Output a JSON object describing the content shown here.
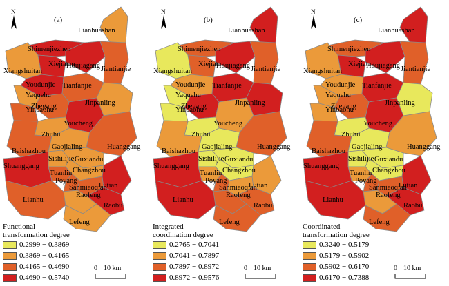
{
  "panels": [
    {
      "letter": "(a)",
      "legend_title": [
        "Functional",
        "transformation degree"
      ],
      "legend_ranges": [
        "0.2999 − 0.3869",
        "0.3869 − 0.4165",
        "0.4165 − 0.4690",
        "0.4690 − 0.5740"
      ],
      "labels": [
        "Lianhuashan",
        "Shimenjiezhen",
        "Xiangshuitan",
        "Xiejiatan",
        "Houjiagang",
        "Jiantianjie",
        "Youdunjie",
        "Tianfanjie",
        "Yaquehu",
        "Zhegang",
        "Jinpanling",
        "Yinbaohu",
        "Youcheng",
        "Zhuhu",
        "Baishazhou",
        "Gaojialing",
        "Huanggang",
        "Sishilijie",
        "Guxiandu",
        "Shuanggang",
        "Tuanlin",
        "Changzhou",
        "Poyang",
        "Sanmiaoqian",
        "Lutian",
        "Lianhu",
        "Raofeng",
        "Raobu",
        "Lefeng"
      ],
      "town_classes": [
        1,
        3,
        1,
        3,
        3,
        2,
        3,
        2,
        1,
        2,
        1,
        2,
        3,
        1,
        2,
        1,
        2,
        1,
        1,
        3,
        2,
        1,
        2,
        2,
        3,
        2,
        1,
        3,
        1
      ]
    },
    {
      "letter": "(b)",
      "legend_title": [
        "Integrated",
        "coordination degree"
      ],
      "legend_ranges": [
        "0.2765 − 0.7041",
        "0.7041 − 0.7897",
        "0.7897 − 0.8972",
        "0.8972 − 0.9576"
      ],
      "labels": [
        "Lianhuashan",
        "Shimenjiezhen",
        "Xiangshuitan",
        "Xiejiatan",
        "Houjiagang",
        "Jiantianjie",
        "Youdunjie",
        "Tianfanjie",
        "Yaquehu",
        "Zhegang",
        "Jinpanling",
        "Yinbaohu",
        "Youcheng",
        "Zhuhu",
        "Baishazhou",
        "Gaojialing",
        "Huanggang",
        "Sishilijie",
        "Guxiandu",
        "Shuanggang",
        "Tuanlin",
        "Changzhou",
        "Poyang",
        "Sanmiaoqian",
        "Lutian",
        "Lianhu",
        "Raofeng",
        "Raobu",
        "Lefeng"
      ],
      "town_classes": [
        3,
        2,
        0,
        2,
        3,
        2,
        1,
        3,
        0,
        3,
        3,
        0,
        1,
        0,
        1,
        0,
        2,
        0,
        0,
        3,
        1,
        0,
        2,
        1,
        1,
        3,
        2,
        2,
        2
      ]
    },
    {
      "letter": "(c)",
      "legend_title": [
        "Coordinated",
        "transformation degree"
      ],
      "legend_ranges": [
        "0.3240 − 0.5179",
        "0.5179 − 0.5902",
        "0.5902 − 0.6170",
        "0.6170 − 0.7388"
      ],
      "labels": [
        "Lianhuashan",
        "Shimenjiezhen",
        "Xiangshuitan",
        "Xiejiatan",
        "Houjiagang",
        "Jiantianjie",
        "Youdunjie",
        "Tianfanjie",
        "Yaquehu",
        "Zhegang",
        "Jinpanling",
        "Yinbaohu",
        "Youcheng",
        "Zhuhu",
        "Baishazhou",
        "Gaojialing",
        "Huanggang",
        "Sishilijie",
        "Guxiandu",
        "Shuanggang",
        "Tuanlin",
        "Changzhou",
        "Poyang",
        "Sanmiaoqian",
        "Lutian",
        "Lianhu",
        "Raofeng",
        "Raobu",
        "Lefeng"
      ],
      "town_classes": [
        3,
        2,
        1,
        3,
        3,
        2,
        1,
        3,
        1,
        2,
        0,
        1,
        3,
        0,
        2,
        0,
        1,
        0,
        0,
        3,
        1,
        0,
        2,
        2,
        3,
        3,
        1,
        3,
        2
      ]
    }
  ],
  "legend_colors": [
    "#e8e85c",
    "#eb9a3a",
    "#e06029",
    "#d21f1f"
  ],
  "scale_label_zero": "0",
  "scale_label_dist": "10 km",
  "north_label": "N"
}
